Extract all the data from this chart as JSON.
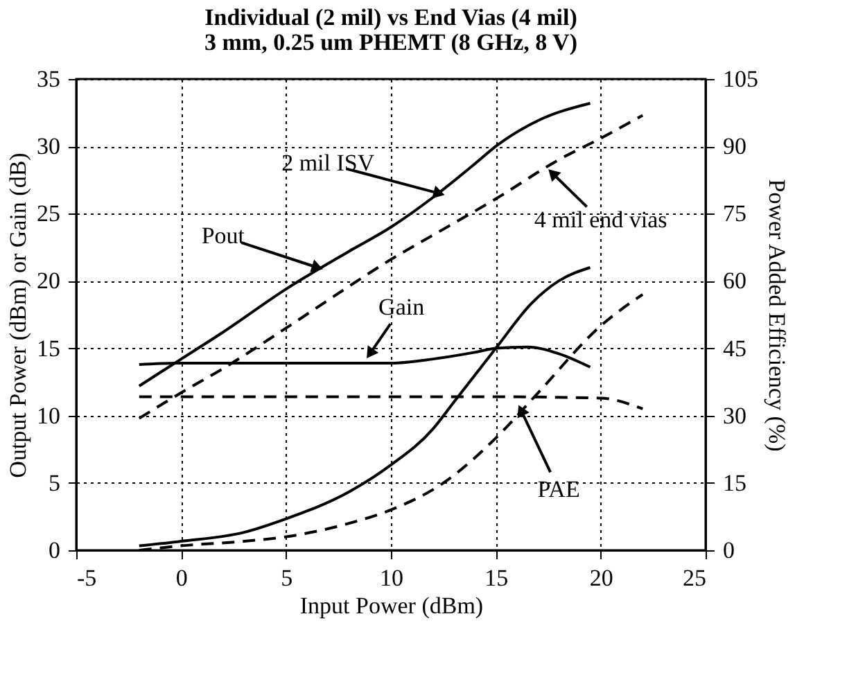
{
  "chart_data": {
    "type": "line",
    "title": "Individual (2 mil) vs End Vias (4 mil)",
    "subtitle": "3 mm, 0.25 um PHEMT (8 GHz, 8 V)",
    "xlabel": "Input Power (dBm)",
    "ylabel": "Output Power (dBm) or Gain (dB)",
    "y2label": "Power Added Efficiency (%)",
    "xlim": [
      -5,
      25
    ],
    "xticks": [
      -5,
      0,
      5,
      10,
      15,
      20,
      25
    ],
    "ylim": [
      0,
      35
    ],
    "yticks": [
      0,
      5,
      10,
      15,
      20,
      25,
      30,
      35
    ],
    "y2lim": [
      0,
      105
    ],
    "y2ticks": [
      0,
      15,
      30,
      45,
      60,
      75,
      90,
      105
    ],
    "grid": true,
    "series": [
      {
        "color": "#000000",
        "line_style": "solid",
        "x": [
          -2,
          0,
          2,
          5,
          8,
          10,
          12,
          14,
          15,
          17,
          19.5
        ],
        "values": [
          12.2,
          14.2,
          16.2,
          19.4,
          22.2,
          24,
          26.2,
          28.7,
          30,
          31.9,
          33.2
        ]
      },
      {
        "color": "#000000",
        "line_style": "dashed",
        "x": [
          -2,
          0,
          2,
          5,
          8,
          10,
          12,
          15,
          18,
          20,
          22
        ],
        "values": [
          9.8,
          11.7,
          13.5,
          16.5,
          19.6,
          21.6,
          23.4,
          26.1,
          29,
          30.6,
          32.3
        ]
      },
      {
        "color": "#000000",
        "line_style": "solid",
        "x": [
          -2,
          0,
          5,
          10,
          12,
          14,
          15,
          16.5,
          18,
          19.5
        ],
        "values": [
          13.8,
          13.9,
          13.9,
          13.9,
          14.2,
          14.7,
          15,
          15.1,
          14.6,
          13.6
        ]
      },
      {
        "color": "#000000",
        "line_style": "dashed",
        "x": [
          -2,
          0,
          5,
          10,
          15,
          20,
          22
        ],
        "values": [
          11.4,
          11.4,
          11.4,
          11.4,
          11.4,
          11.3,
          10.5
        ]
      },
      {
        "color": "#000000",
        "line_style": "solid",
        "axis": "y2",
        "x": [
          -2,
          0,
          3,
          5,
          8,
          10,
          12,
          13,
          15,
          16.7,
          18,
          19.5
        ],
        "values": [
          1,
          2,
          4,
          7,
          13,
          19,
          27,
          33,
          45,
          55,
          60,
          63
        ]
      },
      {
        "color": "#000000",
        "line_style": "dashed",
        "axis": "y2",
        "x": [
          -2,
          0,
          3,
          5,
          8,
          10,
          12.5,
          15,
          17,
          20,
          22
        ],
        "values": [
          0,
          1,
          2,
          3,
          6,
          9,
          15,
          25,
          35,
          50,
          57
        ]
      }
    ],
    "annotations": [
      {
        "text": "2 mil ISV",
        "x": 12.3,
        "y": 26.5
      },
      {
        "text": "4 mil end vias",
        "x": 17.7,
        "y": 28
      },
      {
        "text": "Pout",
        "x": 6.5,
        "y": 21
      },
      {
        "text": "Gain",
        "x": 9,
        "y": 14.6
      },
      {
        "text": "PAE",
        "x": 16.2,
        "y": 10.4
      }
    ]
  }
}
